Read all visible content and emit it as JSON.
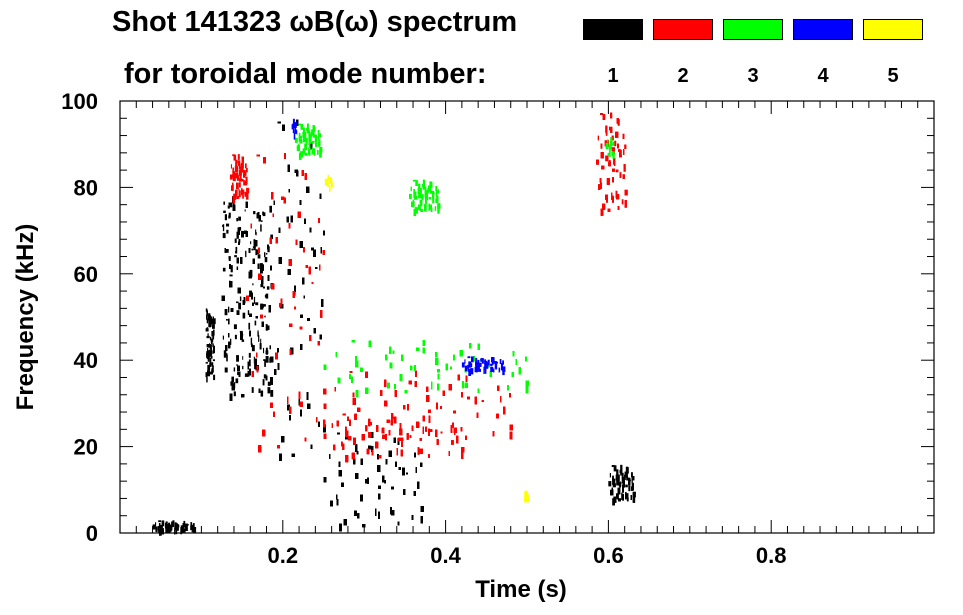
{
  "chart_data": {
    "type": "heatmap",
    "title_line1": "Shot 141323 ωB(ω) spectrum",
    "title_line2": "for toroidal mode number:",
    "xlabel": "Time (s)",
    "ylabel": "Frequency (kHz)",
    "xlim": [
      0.0,
      1.0
    ],
    "ylim": [
      0,
      100
    ],
    "x_ticks": [
      0.2,
      0.4,
      0.6,
      0.8
    ],
    "x_tick_labels": [
      "0.2",
      "0.4",
      "0.6",
      "0.8"
    ],
    "y_ticks": [
      0,
      20,
      40,
      60,
      80,
      100
    ],
    "y_tick_labels": [
      "0",
      "20",
      "40",
      "60",
      "80",
      "100"
    ],
    "legend": [
      {
        "label": "1",
        "color": "#000000"
      },
      {
        "label": "2",
        "color": "#ff0000"
      },
      {
        "label": "3",
        "color": "#00ff00"
      },
      {
        "label": "4",
        "color": "#0000ff"
      },
      {
        "label": "5",
        "color": "#ffff00"
      }
    ],
    "features": [
      {
        "mode": "1",
        "t": [
          0.105,
          0.115
        ],
        "f": [
          36,
          52
        ]
      },
      {
        "mode": "1",
        "t": [
          0.125,
          0.185
        ],
        "f": [
          32,
          78
        ]
      },
      {
        "mode": "1",
        "t": [
          0.185,
          0.25
        ],
        "f": [
          18,
          98
        ]
      },
      {
        "mode": "1",
        "t": [
          0.25,
          0.37
        ],
        "f": [
          2,
          24
        ]
      },
      {
        "mode": "1",
        "t": [
          0.6,
          0.63
        ],
        "f": [
          8,
          16
        ]
      },
      {
        "mode": "1",
        "t": [
          0.04,
          0.09
        ],
        "f": [
          1,
          3
        ]
      },
      {
        "mode": "2",
        "t": [
          0.135,
          0.155
        ],
        "f": [
          78,
          88
        ]
      },
      {
        "mode": "2",
        "t": [
          0.155,
          0.25
        ],
        "f": [
          20,
          90
        ]
      },
      {
        "mode": "2",
        "t": [
          0.25,
          0.48
        ],
        "f": [
          22,
          38
        ]
      },
      {
        "mode": "2",
        "t": [
          0.25,
          0.42
        ],
        "f": [
          18,
          28
        ]
      },
      {
        "mode": "2",
        "t": [
          0.585,
          0.62
        ],
        "f": [
          75,
          98
        ]
      },
      {
        "mode": "3",
        "t": [
          0.215,
          0.245
        ],
        "f": [
          88,
          95
        ]
      },
      {
        "mode": "3",
        "t": [
          0.355,
          0.39
        ],
        "f": [
          75,
          82
        ]
      },
      {
        "mode": "3",
        "t": [
          0.25,
          0.5
        ],
        "f": [
          33,
          45
        ]
      },
      {
        "mode": "3",
        "t": [
          0.595,
          0.605
        ],
        "f": [
          88,
          92
        ]
      },
      {
        "mode": "4",
        "t": [
          0.21,
          0.215
        ],
        "f": [
          92,
          96
        ]
      },
      {
        "mode": "4",
        "t": [
          0.42,
          0.47
        ],
        "f": [
          38,
          41
        ]
      },
      {
        "mode": "5",
        "t": [
          0.25,
          0.26
        ],
        "f": [
          80,
          83
        ]
      },
      {
        "mode": "5",
        "t": [
          0.495,
          0.5
        ],
        "f": [
          8,
          10
        ]
      }
    ]
  }
}
